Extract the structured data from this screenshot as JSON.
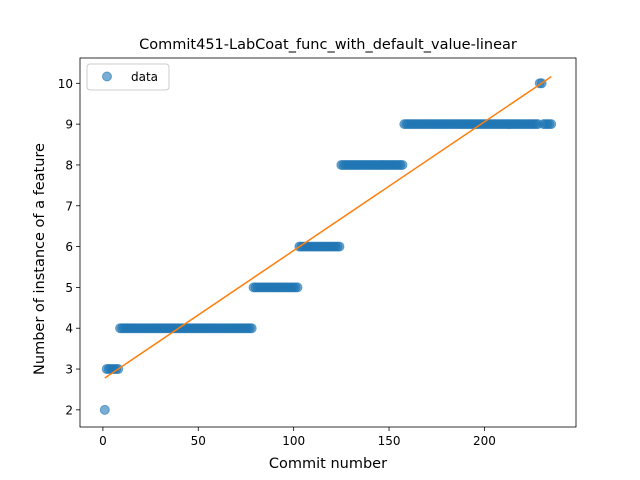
{
  "chart_data": {
    "type": "scatter",
    "title": "Commit451-LabCoat_func_with_default_value-linear",
    "xlabel": "Commit number",
    "ylabel": "Number of instance of a feature",
    "xlim": [
      -12,
      248
    ],
    "ylim": [
      1.58,
      10.62
    ],
    "xticks": [
      0,
      50,
      100,
      150,
      200
    ],
    "yticks": [
      2,
      3,
      4,
      5,
      6,
      7,
      8,
      9,
      10
    ],
    "legend": {
      "position": "top-left",
      "entries": [
        "data"
      ]
    },
    "series": [
      {
        "name": "data",
        "kind": "points",
        "color": "#1f77b4",
        "runs": [
          {
            "x_start": 1,
            "x_end": 1,
            "y": 2
          },
          {
            "x_start": 2,
            "x_end": 8,
            "y": 3
          },
          {
            "x_start": 9,
            "x_end": 78,
            "y": 4
          },
          {
            "x_start": 79,
            "x_end": 102,
            "y": 5
          },
          {
            "x_start": 103,
            "x_end": 124,
            "y": 6
          },
          {
            "x_start": 125,
            "x_end": 157,
            "y": 8
          },
          {
            "x_start": 158,
            "x_end": 228,
            "y": 9
          },
          {
            "x_start": 229,
            "x_end": 230,
            "y": 10
          },
          {
            "x_start": 231,
            "x_end": 235,
            "y": 9
          }
        ]
      },
      {
        "kind": "fit-line",
        "color": "#ff7f0e",
        "x": [
          1,
          235
        ],
        "y": [
          2.78,
          10.16
        ]
      }
    ],
    "grid": false
  }
}
